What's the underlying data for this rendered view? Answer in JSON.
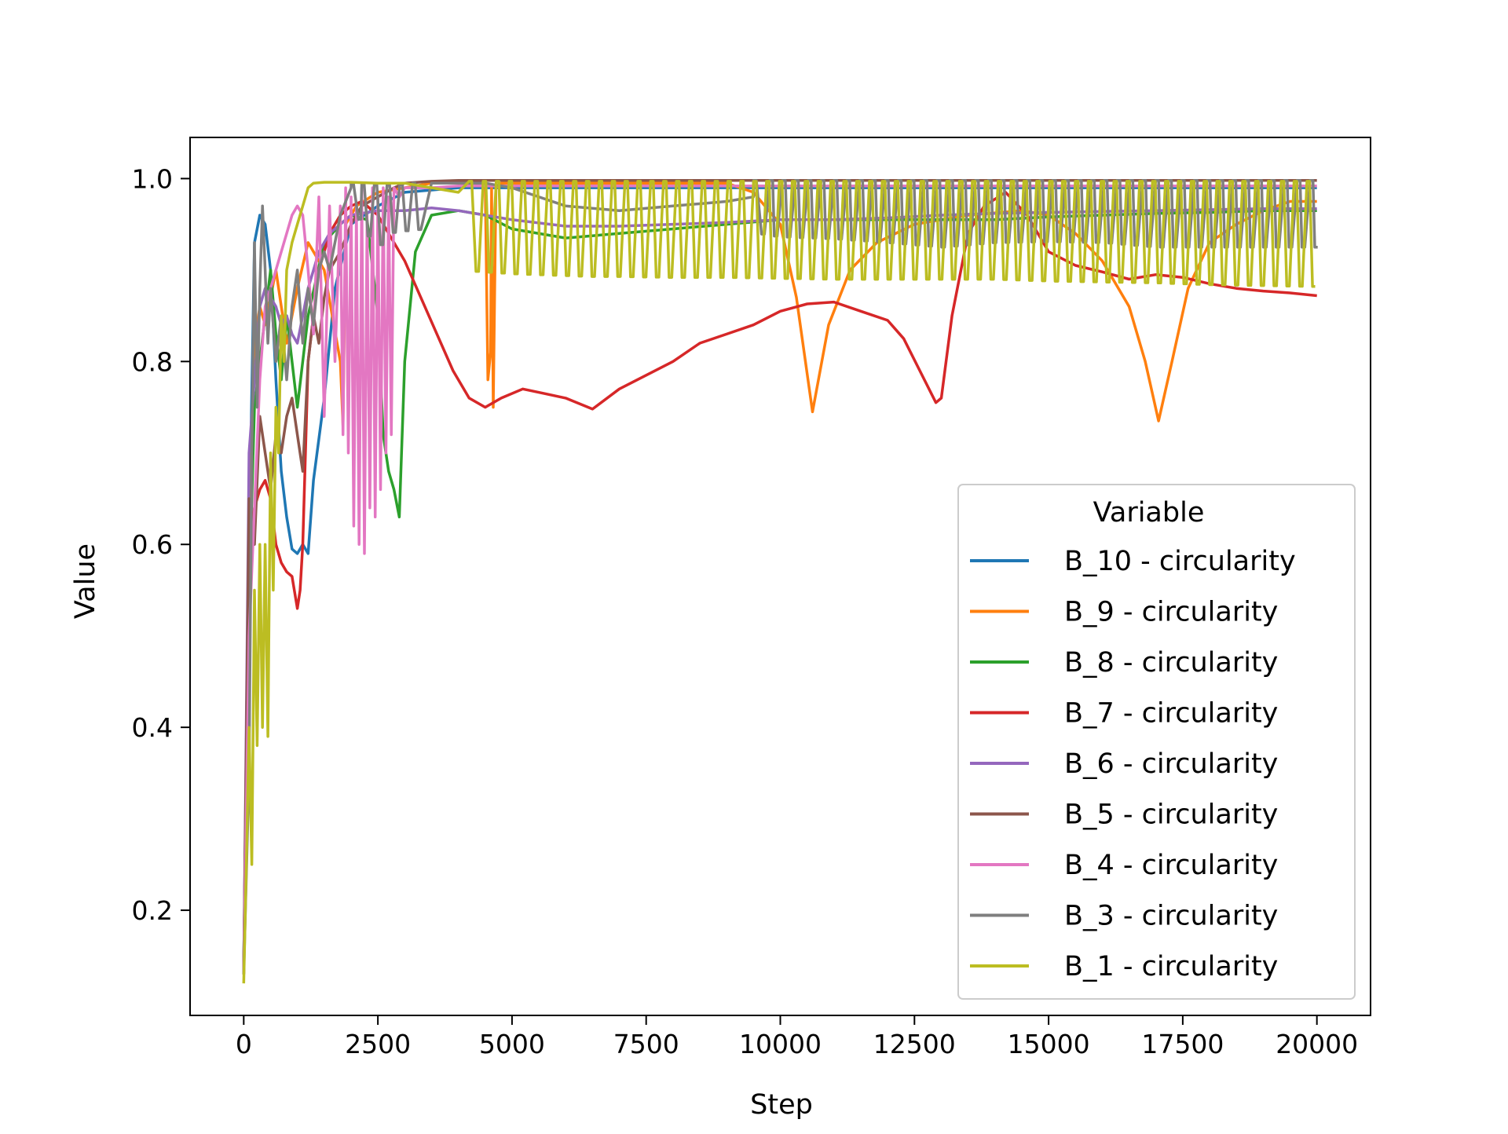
{
  "chart_data": {
    "type": "line",
    "title": "",
    "xlabel": "Step",
    "ylabel": "Value",
    "xlim": [
      -1000,
      21000
    ],
    "ylim": [
      0.085,
      1.045
    ],
    "xticks": [
      0,
      2500,
      5000,
      7500,
      10000,
      12500,
      15000,
      17500,
      20000
    ],
    "xtick_labels": [
      "0",
      "2500",
      "5000",
      "7500",
      "10000",
      "12500",
      "15000",
      "17500",
      "20000"
    ],
    "yticks": [
      0.2,
      0.4,
      0.6,
      0.8,
      1.0
    ],
    "ytick_labels": [
      "0.2",
      "0.4",
      "0.6",
      "0.8",
      "1.0"
    ],
    "grid": false,
    "legend": {
      "title": "Variable",
      "position": "lower-right"
    },
    "series": [
      {
        "name": "B_10 - circularity",
        "color": "#1f77b4",
        "x": [
          0,
          100,
          200,
          300,
          400,
          500,
          600,
          700,
          800,
          900,
          1000,
          1100,
          1200,
          1300,
          1500,
          1700,
          2000,
          2500,
          3000,
          4000,
          5000,
          6000,
          7000,
          8000,
          9000,
          10000,
          11000,
          12000,
          13000,
          14000,
          15000,
          16000,
          17000,
          18000,
          19000,
          20000
        ],
        "y": [
          0.14,
          0.6,
          0.93,
          0.96,
          0.95,
          0.9,
          0.78,
          0.68,
          0.63,
          0.595,
          0.59,
          0.6,
          0.59,
          0.67,
          0.76,
          0.88,
          0.95,
          0.97,
          0.985,
          0.99,
          0.99,
          0.99,
          0.99,
          0.99,
          0.99,
          0.99,
          0.99,
          0.99,
          0.99,
          0.99,
          0.99,
          0.99,
          0.99,
          0.99,
          0.99,
          0.99
        ]
      },
      {
        "name": "B_9 - circularity",
        "color": "#ff7f0e",
        "x": [
          0,
          100,
          200,
          300,
          400,
          600,
          800,
          1000,
          1200,
          1500,
          1800,
          1850,
          1900,
          2100,
          2500,
          3000,
          3500,
          4000,
          4500,
          4550,
          4600,
          4620,
          4650,
          4700,
          4800,
          5000,
          6000,
          7000,
          8000,
          9000,
          9500,
          10000,
          10300,
          10600,
          10900,
          11300,
          11800,
          12500,
          13500,
          14500,
          15000,
          15500,
          16000,
          16500,
          16800,
          17050,
          17300,
          17600,
          18000,
          18500,
          19000,
          19500,
          20000
        ],
        "y": [
          0.13,
          0.6,
          0.82,
          0.86,
          0.84,
          0.9,
          0.82,
          0.88,
          0.93,
          0.9,
          0.8,
          0.73,
          0.95,
          0.97,
          0.985,
          0.99,
          0.995,
          0.995,
          0.995,
          0.78,
          0.81,
          0.99,
          0.75,
          0.99,
          0.995,
          0.995,
          0.995,
          0.995,
          0.995,
          0.995,
          0.985,
          0.95,
          0.87,
          0.745,
          0.84,
          0.9,
          0.93,
          0.95,
          0.96,
          0.965,
          0.96,
          0.94,
          0.91,
          0.86,
          0.8,
          0.735,
          0.8,
          0.88,
          0.93,
          0.95,
          0.965,
          0.975,
          0.975
        ]
      },
      {
        "name": "B_8 - circularity",
        "color": "#2ca02c",
        "x": [
          0,
          100,
          200,
          300,
          400,
          500,
          600,
          700,
          800,
          900,
          1000,
          1200,
          1500,
          1800,
          2000,
          2300,
          2500,
          2600,
          2700,
          2800,
          2900,
          3000,
          3200,
          3500,
          4000,
          4500,
          5000,
          6000,
          7000,
          8000,
          9000,
          10000,
          11000,
          12000,
          13000,
          14000,
          15000,
          16000,
          17000,
          18000,
          19000,
          20000
        ],
        "y": [
          0.14,
          0.55,
          0.75,
          0.8,
          0.85,
          0.9,
          0.83,
          0.78,
          0.85,
          0.8,
          0.75,
          0.85,
          0.93,
          0.95,
          0.96,
          0.955,
          0.85,
          0.72,
          0.68,
          0.66,
          0.63,
          0.8,
          0.92,
          0.96,
          0.965,
          0.96,
          0.945,
          0.935,
          0.94,
          0.945,
          0.95,
          0.955,
          0.955,
          0.955,
          0.955,
          0.955,
          0.958,
          0.96,
          0.962,
          0.963,
          0.965,
          0.965
        ]
      },
      {
        "name": "B_7 - circularity",
        "color": "#d62728",
        "x": [
          0,
          100,
          200,
          300,
          400,
          500,
          600,
          700,
          800,
          900,
          1000,
          1050,
          1100,
          1200,
          1400,
          1600,
          1800,
          2000,
          2200,
          2500,
          2800,
          3000,
          3300,
          3600,
          3900,
          4200,
          4500,
          4800,
          5200,
          5600,
          6000,
          6500,
          7000,
          7500,
          8000,
          8500,
          9000,
          9500,
          10000,
          10500,
          11000,
          11500,
          12000,
          12300,
          12600,
          12900,
          13000,
          13200,
          13500,
          13800,
          14200,
          14600,
          15000,
          15500,
          16000,
          16500,
          17000,
          17500,
          18000,
          18500,
          19000,
          19500,
          20000
        ],
        "y": [
          0.13,
          0.6,
          0.64,
          0.66,
          0.67,
          0.65,
          0.6,
          0.58,
          0.57,
          0.565,
          0.53,
          0.55,
          0.6,
          0.8,
          0.9,
          0.94,
          0.96,
          0.97,
          0.975,
          0.96,
          0.93,
          0.91,
          0.87,
          0.83,
          0.79,
          0.76,
          0.75,
          0.76,
          0.77,
          0.765,
          0.76,
          0.748,
          0.77,
          0.785,
          0.8,
          0.82,
          0.83,
          0.84,
          0.855,
          0.863,
          0.865,
          0.855,
          0.845,
          0.825,
          0.79,
          0.755,
          0.76,
          0.85,
          0.94,
          0.97,
          0.985,
          0.96,
          0.92,
          0.905,
          0.898,
          0.89,
          0.895,
          0.892,
          0.885,
          0.88,
          0.877,
          0.875,
          0.872
        ]
      },
      {
        "name": "B_6 - circularity",
        "color": "#9467bd",
        "x": [
          0,
          100,
          200,
          300,
          400,
          500,
          600,
          700,
          800,
          900,
          1000,
          1200,
          1400,
          1600,
          1800,
          2000,
          2500,
          3000,
          3500,
          4000,
          5000,
          6000,
          7000,
          8000,
          9000,
          10000,
          11000,
          12000,
          13000,
          14000,
          15000,
          16000,
          17000,
          18000,
          19000,
          20000
        ],
        "y": [
          0.13,
          0.7,
          0.78,
          0.86,
          0.88,
          0.87,
          0.86,
          0.84,
          0.85,
          0.83,
          0.82,
          0.88,
          0.92,
          0.94,
          0.95,
          0.96,
          0.965,
          0.965,
          0.968,
          0.965,
          0.955,
          0.948,
          0.948,
          0.95,
          0.952,
          0.955,
          0.955,
          0.957,
          0.96,
          0.962,
          0.963,
          0.964,
          0.965,
          0.966,
          0.967,
          0.967
        ]
      },
      {
        "name": "B_5 - circularity",
        "color": "#8c564b",
        "x": [
          0,
          100,
          200,
          300,
          400,
          500,
          600,
          700,
          800,
          900,
          1000,
          1100,
          1200,
          1300,
          1400,
          1500,
          1600,
          1800,
          2000,
          2200,
          2500,
          2800,
          3000,
          3500,
          4000,
          5000,
          7000,
          9000,
          11000,
          13000,
          15000,
          17000,
          19000,
          20000
        ],
        "y": [
          0.13,
          0.65,
          0.6,
          0.74,
          0.7,
          0.66,
          0.72,
          0.7,
          0.74,
          0.76,
          0.72,
          0.68,
          0.8,
          0.85,
          0.82,
          0.87,
          0.9,
          0.92,
          0.95,
          0.97,
          0.98,
          0.99,
          0.995,
          0.997,
          0.998,
          0.998,
          0.998,
          0.998,
          0.998,
          0.998,
          0.998,
          0.998,
          0.998,
          0.998
        ]
      },
      {
        "name": "B_4 - circularity",
        "color": "#e377c2",
        "x": [
          0,
          100,
          200,
          300,
          400,
          500,
          600,
          700,
          800,
          900,
          1000,
          1100,
          1200,
          1300,
          1400,
          1500,
          1600,
          1700,
          1800,
          1850,
          1900,
          1950,
          2000,
          2050,
          2100,
          2150,
          2200,
          2250,
          2300,
          2350,
          2400,
          2450,
          2500,
          2550,
          2600,
          2650,
          2700,
          2750,
          2800,
          2900,
          3000,
          3500,
          4000,
          5000,
          7000,
          9000,
          11000,
          13000,
          15000,
          17000,
          19000,
          20000
        ],
        "y": [
          0.13,
          0.5,
          0.64,
          0.78,
          0.86,
          0.88,
          0.9,
          0.92,
          0.94,
          0.96,
          0.97,
          0.96,
          0.9,
          0.83,
          0.98,
          0.74,
          0.97,
          0.8,
          0.97,
          0.72,
          0.99,
          0.7,
          0.98,
          0.62,
          0.97,
          0.6,
          0.99,
          0.59,
          0.96,
          0.64,
          0.99,
          0.63,
          0.98,
          0.66,
          0.99,
          0.7,
          0.98,
          0.72,
          0.99,
          0.98,
          0.99,
          0.99,
          0.992,
          0.992,
          0.992,
          0.992,
          0.992,
          0.992,
          0.992,
          0.992,
          0.992,
          0.992
        ]
      },
      {
        "name": "B_3 - circularity",
        "color": "#7f7f7f",
        "x": [
          0,
          100,
          150,
          200,
          250,
          300,
          350,
          400,
          450,
          500,
          600,
          700,
          800,
          900,
          1000,
          1100,
          1200,
          1300,
          1400,
          1500,
          1600,
          1800,
          2000,
          2200,
          2400,
          2500,
          2600,
          2700,
          2800,
          2900,
          3000,
          3200,
          3500,
          4000,
          4500,
          5000,
          6000,
          7000,
          8000,
          9000,
          9500,
          10000,
          11000,
          12000,
          13000,
          14000,
          15000,
          16000,
          17000,
          18000,
          19000,
          20000
        ],
        "y": [
          0.13,
          0.35,
          0.7,
          0.93,
          0.75,
          0.88,
          0.97,
          0.9,
          0.82,
          0.88,
          0.8,
          0.85,
          0.78,
          0.86,
          0.9,
          0.82,
          0.88,
          0.84,
          0.9,
          0.92,
          0.9,
          0.96,
          0.99,
          0.94,
          0.99,
          0.87,
          0.99,
          0.95,
          0.99,
          0.96,
          0.99,
          0.995,
          0.995,
          0.995,
          0.995,
          0.99,
          0.97,
          0.965,
          0.97,
          0.975,
          0.98,
          0.96,
          0.95,
          0.93,
          0.925,
          0.93,
          0.935,
          0.93,
          0.925,
          0.925,
          0.925,
          0.925
        ],
        "osc": [
          {
            "start": 2000,
            "end": 3300,
            "period": 100,
            "high": 0.995,
            "low": 0.93
          },
          {
            "start": 9500,
            "end": 20000,
            "period": 120,
            "high": 0.998,
            "low": 0.93
          }
        ]
      },
      {
        "name": "B_1 - circularity",
        "color": "#bcbd22",
        "x": [
          0,
          50,
          100,
          150,
          200,
          250,
          300,
          350,
          400,
          450,
          500,
          550,
          600,
          650,
          700,
          750,
          800,
          900,
          1000,
          1100,
          1200,
          1300,
          1500,
          2000,
          2500,
          3000,
          3500,
          4000,
          4500,
          5000,
          5500,
          6000,
          6500,
          7000,
          8000,
          9000,
          10000,
          11000,
          12000,
          13000,
          14000,
          15000,
          16000,
          17000,
          18000,
          19000,
          20000
        ],
        "y": [
          0.12,
          0.25,
          0.4,
          0.25,
          0.55,
          0.38,
          0.6,
          0.4,
          0.6,
          0.39,
          0.7,
          0.55,
          0.75,
          0.7,
          0.85,
          0.8,
          0.9,
          0.93,
          0.95,
          0.97,
          0.99,
          0.995,
          0.996,
          0.996,
          0.995,
          0.995,
          0.99,
          0.985,
          0.97,
          0.96,
          0.955,
          0.95,
          0.945,
          0.945,
          0.94,
          0.94,
          0.935,
          0.93,
          0.93,
          0.93,
          0.93,
          0.92,
          0.915,
          0.91,
          0.9,
          0.895,
          0.89
        ],
        "osc": [
          {
            "start": 4200,
            "end": 20000,
            "period": 110,
            "high": 0.997,
            "low": 0.88
          }
        ]
      }
    ]
  }
}
